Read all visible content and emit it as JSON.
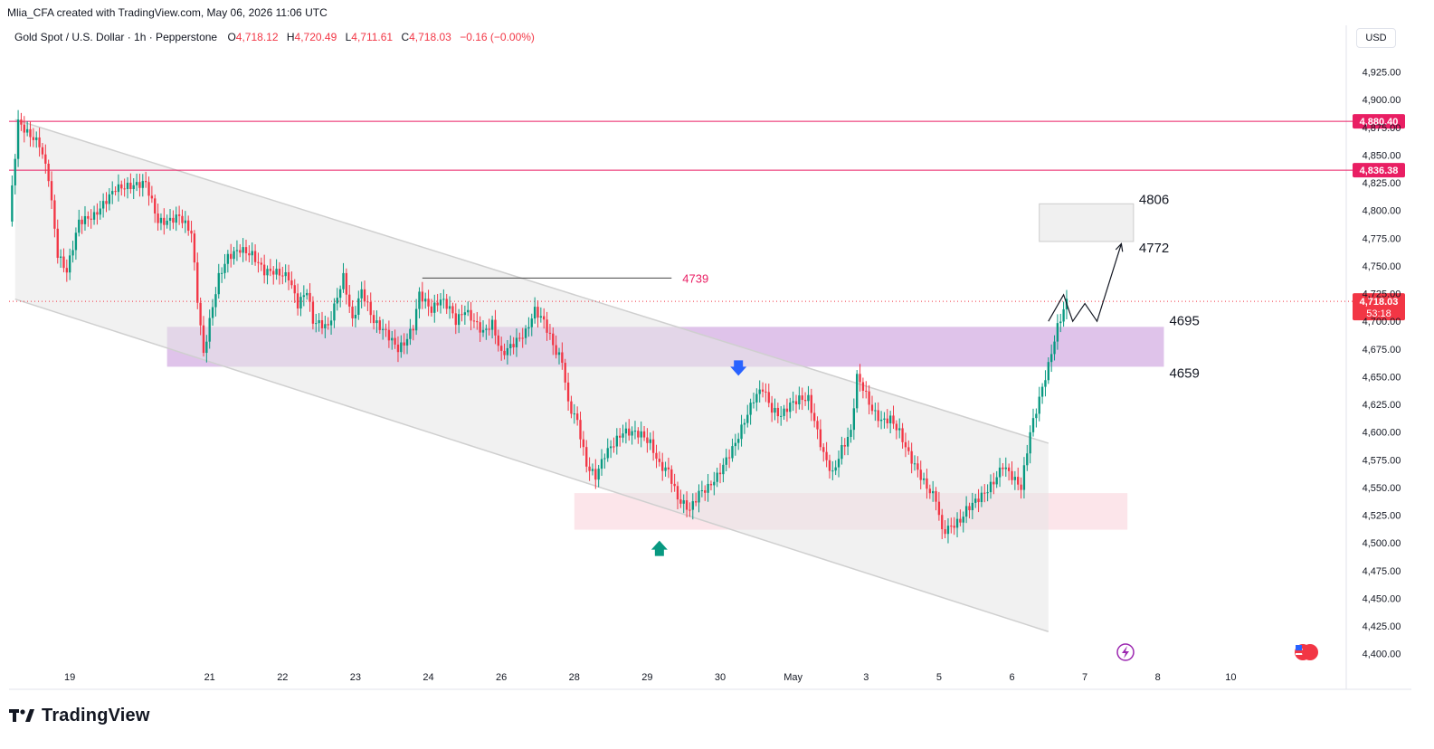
{
  "header": {
    "credit": "Mlia_CFA created with TradingView.com, May 06, 2026 11:06 UTC",
    "symbol": "Gold Spot / U.S. Dollar · 1h · Pepperstone",
    "o_label": "O",
    "o_value": "4,718.12",
    "h_label": "H",
    "h_value": "4,720.49",
    "l_label": "L",
    "l_value": "4,711.61",
    "c_label": "C",
    "c_value": "4,718.03",
    "change": "−0.16 (−0.00%)",
    "currency": "USD"
  },
  "brand": {
    "logo_text": "TradingView"
  },
  "colors": {
    "up": "#089981",
    "down": "#f23645",
    "accent": "#e91e63",
    "zone_purple": "#d9b8e6",
    "zone_pink": "#fbe0e6",
    "channel": "#e6e6e6"
  },
  "chart_data": {
    "type": "candlestick",
    "ylim": [
      4390,
      4945
    ],
    "y_ticks": [
      "4,400.00",
      "4,425.00",
      "4,450.00",
      "4,475.00",
      "4,500.00",
      "4,525.00",
      "4,550.00",
      "4,575.00",
      "4,600.00",
      "4,625.00",
      "4,650.00",
      "4,675.00",
      "4,700.00",
      "4,725.00",
      "4,750.00",
      "4,775.00",
      "4,800.00",
      "4,825.00",
      "4,850.00",
      "4,875.00",
      "4,900.00",
      "4,925.00"
    ],
    "x_ticks": [
      {
        "label": "19",
        "hour": 20
      },
      {
        "label": "21",
        "hour": 66
      },
      {
        "label": "22",
        "hour": 90
      },
      {
        "label": "23",
        "hour": 114
      },
      {
        "label": "24",
        "hour": 138
      },
      {
        "label": "26",
        "hour": 162
      },
      {
        "label": "28",
        "hour": 186
      },
      {
        "label": "29",
        "hour": 210
      },
      {
        "label": "30",
        "hour": 234
      },
      {
        "label": "May",
        "hour": 258
      },
      {
        "label": "3",
        "hour": 282
      },
      {
        "label": "5",
        "hour": 306
      },
      {
        "label": "6",
        "hour": 330
      },
      {
        "label": "7",
        "hour": 354
      },
      {
        "label": "8",
        "hour": 378
      },
      {
        "label": "10",
        "hour": 402
      }
    ],
    "xlim": [
      0,
      440
    ],
    "path": [
      [
        0,
        4790
      ],
      [
        3,
        4880
      ],
      [
        6,
        4870
      ],
      [
        10,
        4860
      ],
      [
        13,
        4830
      ],
      [
        16,
        4760
      ],
      [
        19,
        4745
      ],
      [
        23,
        4790
      ],
      [
        28,
        4795
      ],
      [
        35,
        4820
      ],
      [
        40,
        4822
      ],
      [
        45,
        4825
      ],
      [
        49,
        4790
      ],
      [
        52,
        4790
      ],
      [
        56,
        4795
      ],
      [
        60,
        4780
      ],
      [
        62,
        4720
      ],
      [
        64,
        4670
      ],
      [
        66,
        4700
      ],
      [
        69,
        4740
      ],
      [
        72,
        4758
      ],
      [
        76,
        4765
      ],
      [
        80,
        4760
      ],
      [
        84,
        4745
      ],
      [
        87,
        4745
      ],
      [
        92,
        4740
      ],
      [
        95,
        4715
      ],
      [
        98,
        4728
      ],
      [
        100,
        4700
      ],
      [
        105,
        4695
      ],
      [
        110,
        4740
      ],
      [
        113,
        4700
      ],
      [
        116,
        4728
      ],
      [
        120,
        4700
      ],
      [
        124,
        4690
      ],
      [
        128,
        4675
      ],
      [
        130,
        4680
      ],
      [
        133,
        4695
      ],
      [
        135,
        4725
      ],
      [
        139,
        4710
      ],
      [
        142,
        4720
      ],
      [
        145,
        4712
      ],
      [
        147,
        4700
      ],
      [
        150,
        4710
      ],
      [
        153,
        4700
      ],
      [
        156,
        4690
      ],
      [
        159,
        4698
      ],
      [
        162,
        4670
      ],
      [
        166,
        4680
      ],
      [
        170,
        4690
      ],
      [
        173,
        4710
      ],
      [
        176,
        4700
      ],
      [
        180,
        4672
      ],
      [
        182,
        4665
      ],
      [
        184,
        4625
      ],
      [
        187,
        4610
      ],
      [
        190,
        4570
      ],
      [
        193,
        4560
      ],
      [
        196,
        4580
      ],
      [
        199,
        4590
      ],
      [
        202,
        4600
      ],
      [
        205,
        4600
      ],
      [
        208,
        4598
      ],
      [
        211,
        4590
      ],
      [
        214,
        4570
      ],
      [
        217,
        4565
      ],
      [
        220,
        4540
      ],
      [
        224,
        4530
      ],
      [
        227,
        4545
      ],
      [
        230,
        4550
      ],
      [
        233,
        4560
      ],
      [
        236,
        4575
      ],
      [
        239,
        4590
      ],
      [
        242,
        4610
      ],
      [
        245,
        4630
      ],
      [
        248,
        4640
      ],
      [
        251,
        4620
      ],
      [
        254,
        4615
      ],
      [
        257,
        4625
      ],
      [
        260,
        4630
      ],
      [
        263,
        4630
      ],
      [
        266,
        4600
      ],
      [
        268,
        4580
      ],
      [
        271,
        4562
      ],
      [
        274,
        4585
      ],
      [
        277,
        4600
      ],
      [
        279,
        4650
      ],
      [
        281,
        4640
      ],
      [
        284,
        4620
      ],
      [
        287,
        4610
      ],
      [
        290,
        4612
      ],
      [
        293,
        4600
      ],
      [
        296,
        4580
      ],
      [
        299,
        4565
      ],
      [
        302,
        4550
      ],
      [
        305,
        4540
      ],
      [
        307,
        4510
      ],
      [
        310,
        4515
      ],
      [
        313,
        4520
      ],
      [
        315,
        4530
      ],
      [
        318,
        4538
      ],
      [
        321,
        4545
      ],
      [
        324,
        4555
      ],
      [
        327,
        4570
      ],
      [
        330,
        4560
      ],
      [
        333,
        4550
      ],
      [
        336,
        4600
      ],
      [
        339,
        4630
      ],
      [
        342,
        4660
      ],
      [
        345,
        4695
      ],
      [
        348,
        4718
      ]
    ],
    "levels": [
      {
        "price": 4880.4,
        "label": "4,880.40"
      },
      {
        "price": 4836.38,
        "label": "4,836.38"
      }
    ],
    "current_price": {
      "price": 4718.03,
      "label": "4,718.03",
      "countdown": "53:18"
    },
    "resistance_line": {
      "price": 4739,
      "label": "4739",
      "from_hour": 136,
      "to_hour": 218
    },
    "zones": [
      {
        "name": "purple-zone",
        "from_hour": 52,
        "to_hour": 380,
        "top": 4695,
        "bottom": 4659,
        "top_label": "4695",
        "bottom_label": "4659"
      },
      {
        "name": "pink-zone",
        "from_hour": 186,
        "to_hour": 368,
        "top": 4545,
        "bottom": 4512
      },
      {
        "name": "target-box",
        "from_hour": 339,
        "to_hour": 370,
        "top": 4806,
        "bottom": 4772,
        "top_label": "4806",
        "bottom_label": "4772"
      }
    ],
    "channel": {
      "from_hour": 2,
      "to_hour": 342,
      "upper_start": 4882,
      "upper_end": 4590,
      "lower_start": 4720,
      "lower_end": 4420
    },
    "projection": [
      [
        342,
        4700
      ],
      [
        347,
        4724
      ],
      [
        350,
        4700
      ],
      [
        354,
        4716
      ],
      [
        358,
        4700
      ],
      [
        366,
        4770
      ]
    ],
    "arrows": [
      {
        "name": "down-arrow",
        "hour": 240,
        "price": 4655,
        "direction": "down",
        "color": "#2962ff"
      },
      {
        "name": "up-arrow",
        "hour": 214,
        "price": 4498,
        "direction": "up",
        "color": "#089981"
      }
    ]
  }
}
